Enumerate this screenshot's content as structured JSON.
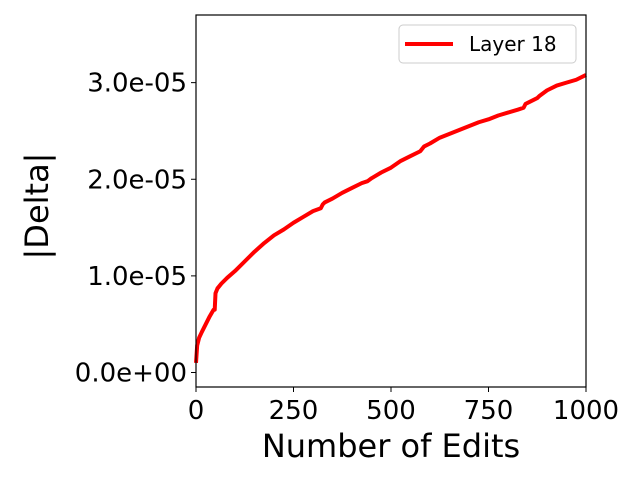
{
  "chart_data": {
    "type": "line",
    "xlabel": "Number of Edits",
    "ylabel": "|Delta|",
    "xlim": [
      0,
      1000
    ],
    "ylim": [
      -1.5e-06,
      3.7e-05
    ],
    "x_ticks": [
      0,
      250,
      500,
      750,
      1000
    ],
    "x_tick_labels": [
      "0",
      "250",
      "500",
      "750",
      "1000"
    ],
    "y_ticks": [
      0,
      1e-05,
      2e-05,
      3e-05
    ],
    "y_tick_labels": [
      "0.0e+00",
      "1.0e-05",
      "2.0e-05",
      "3.0e-05"
    ],
    "grid": false,
    "legend_position": "top-right",
    "series": [
      {
        "name": "Layer 18",
        "color": "#ff0000",
        "x": [
          0,
          3,
          8,
          15,
          25,
          35,
          45,
          48,
          50,
          55,
          65,
          80,
          100,
          125,
          150,
          175,
          200,
          225,
          250,
          275,
          300,
          320,
          325,
          330,
          350,
          375,
          400,
          425,
          440,
          450,
          475,
          500,
          525,
          550,
          575,
          585,
          600,
          625,
          650,
          675,
          700,
          725,
          750,
          775,
          800,
          825,
          840,
          845,
          850,
          875,
          880,
          900,
          925,
          950,
          975,
          1000
        ],
        "y": [
          1e-06,
          2.8e-06,
          3.6e-06,
          4.2e-06,
          5e-06,
          5.8e-06,
          6.5e-06,
          6.5e-06,
          8.2e-06,
          8.7e-06,
          9.2e-06,
          9.8e-06,
          1.05e-05,
          1.15e-05,
          1.25e-05,
          1.34e-05,
          1.42e-05,
          1.48e-05,
          1.55e-05,
          1.61e-05,
          1.67e-05,
          1.7e-05,
          1.74e-05,
          1.76e-05,
          1.8e-05,
          1.86e-05,
          1.91e-05,
          1.96e-05,
          1.98e-05,
          2.01e-05,
          2.07e-05,
          2.12e-05,
          2.19e-05,
          2.24e-05,
          2.29e-05,
          2.34e-05,
          2.37e-05,
          2.43e-05,
          2.47e-05,
          2.51e-05,
          2.55e-05,
          2.59e-05,
          2.62e-05,
          2.66e-05,
          2.69e-05,
          2.72e-05,
          2.74e-05,
          2.78e-05,
          2.79e-05,
          2.84e-05,
          2.86e-05,
          2.92e-05,
          2.97e-05,
          3e-05,
          3.03e-05,
          3.08e-05
        ]
      }
    ]
  }
}
